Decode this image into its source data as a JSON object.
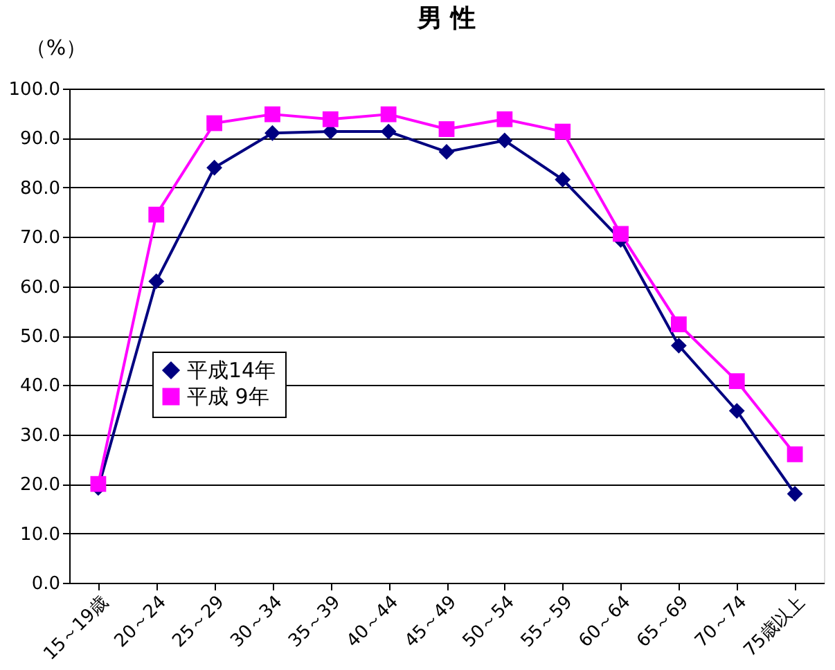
{
  "chart_data": {
    "type": "line",
    "title": "男 性",
    "ylabel": "（%）",
    "categories": [
      "15～19歳",
      "20～24",
      "25～29",
      "30～34",
      "35～39",
      "40～44",
      "45～49",
      "50～54",
      "55～59",
      "60～64",
      "65～69",
      "70～74",
      "75歳以上"
    ],
    "series": [
      {
        "name": "平成14年",
        "color": "#000080",
        "marker": "diamond",
        "values": [
          19.2,
          61.0,
          84.0,
          91.0,
          91.3,
          91.3,
          87.2,
          89.5,
          81.6,
          69.4,
          48.0,
          34.8,
          18.0
        ]
      },
      {
        "name": "平成 9年",
        "color": "#ff00ff",
        "marker": "square",
        "values": [
          20.0,
          74.5,
          93.0,
          94.8,
          93.8,
          94.8,
          91.8,
          93.8,
          91.3,
          70.6,
          52.3,
          40.8,
          26.0
        ]
      }
    ],
    "ylim": [
      0,
      100
    ],
    "yticks": [
      {
        "value": 0,
        "label": "0.0"
      },
      {
        "value": 10,
        "label": "10.0"
      },
      {
        "value": 20,
        "label": "20.0"
      },
      {
        "value": 30,
        "label": "30.0"
      },
      {
        "value": 40,
        "label": "40.0"
      },
      {
        "value": 50,
        "label": "50.0"
      },
      {
        "value": 60,
        "label": "60.0"
      },
      {
        "value": 70,
        "label": "70.0"
      },
      {
        "value": 80,
        "label": "80.0"
      },
      {
        "value": 90,
        "label": "90.0"
      },
      {
        "value": 100,
        "label": "100.0"
      }
    ],
    "grid": "y",
    "legend": "left",
    "line_style": "solid"
  }
}
